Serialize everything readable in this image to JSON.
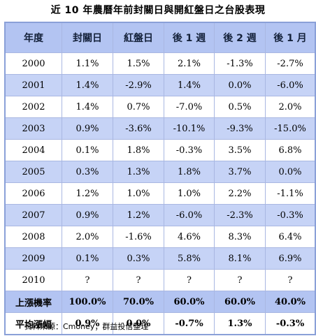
{
  "title": "近 10 年農曆年前封關日與開紅盤日之台股表現",
  "headers": [
    "年度",
    "封關日",
    "紅盤日",
    "後 1 週",
    "後 2 週",
    "後 1 月"
  ],
  "rows": [
    [
      "2000",
      "1.1%",
      "1.5%",
      "2.1%",
      "-1.3%",
      "-2.7%"
    ],
    [
      "2001",
      "1.4%",
      "-2.9%",
      "1.4%",
      "0.0%",
      "-6.0%"
    ],
    [
      "2002",
      "1.4%",
      "0.7%",
      "-7.0%",
      "0.5%",
      "2.0%"
    ],
    [
      "2003",
      "0.9%",
      "-3.6%",
      "-10.1%",
      "-9.3%",
      "-15.0%"
    ],
    [
      "2004",
      "0.1%",
      "1.8%",
      "-0.3%",
      "3.5%",
      "6.8%"
    ],
    [
      "2005",
      "0.3%",
      "1.3%",
      "1.8%",
      "3.7%",
      "0.0%"
    ],
    [
      "2006",
      "1.2%",
      "1.0%",
      "1.0%",
      "2.2%",
      "-1.1%"
    ],
    [
      "2007",
      "0.9%",
      "1.2%",
      "-6.0%",
      "-2.3%",
      "-0.3%"
    ],
    [
      "2008",
      "2.0%",
      "-1.6%",
      "4.6%",
      "8.3%",
      "6.4%"
    ],
    [
      "2009",
      "0.1%",
      "0.3%",
      "5.8%",
      "8.1%",
      "6.9%"
    ],
    [
      "2010",
      "?",
      "?",
      "?",
      "?",
      "?"
    ]
  ],
  "summary": [
    [
      "上漲機率",
      "100.0%",
      "70.0%",
      "60.0%",
      "60.0%",
      "40.0%"
    ],
    [
      "平均漲幅",
      "0.9%",
      "0.0%",
      "-0.7%",
      "1.3%",
      "-0.3%"
    ]
  ],
  "source": "資料來源：Cmoney；群益投信整理",
  "colors": {
    "header_bg": "#b3c4f2",
    "alt_row_bg": "#c6d3f6",
    "border": "#a9b7e2"
  }
}
